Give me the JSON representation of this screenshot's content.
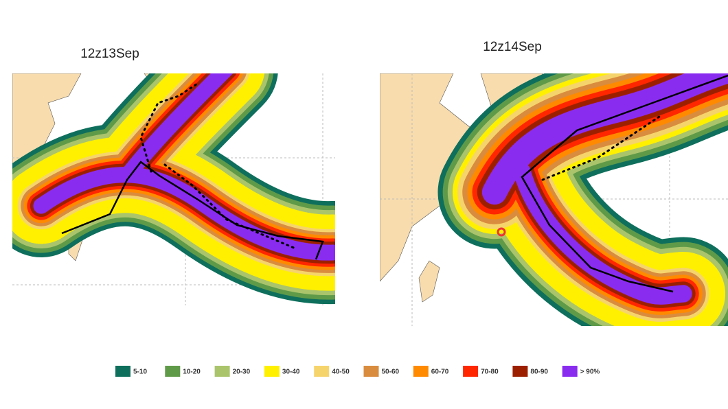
{
  "panels": [
    {
      "title": "12z13Sep"
    },
    {
      "title": "12z14Sep"
    }
  ],
  "legend": [
    {
      "label": "5-10",
      "color": "#0e6f5c"
    },
    {
      "label": "10-20",
      "color": "#5f9a48"
    },
    {
      "label": "20-30",
      "color": "#aac46c"
    },
    {
      "label": "30-40",
      "color": "#fff000"
    },
    {
      "label": "40-50",
      "color": "#f6d46c"
    },
    {
      "label": "50-60",
      "color": "#d98c3e"
    },
    {
      "label": "60-70",
      "color": "#ff8a00"
    },
    {
      "label": "70-80",
      "color": "#ff2600"
    },
    {
      "label": "80-90",
      "color": "#9c2000"
    },
    {
      "label": "> 90%",
      "color": "#8a2cf0"
    }
  ]
}
